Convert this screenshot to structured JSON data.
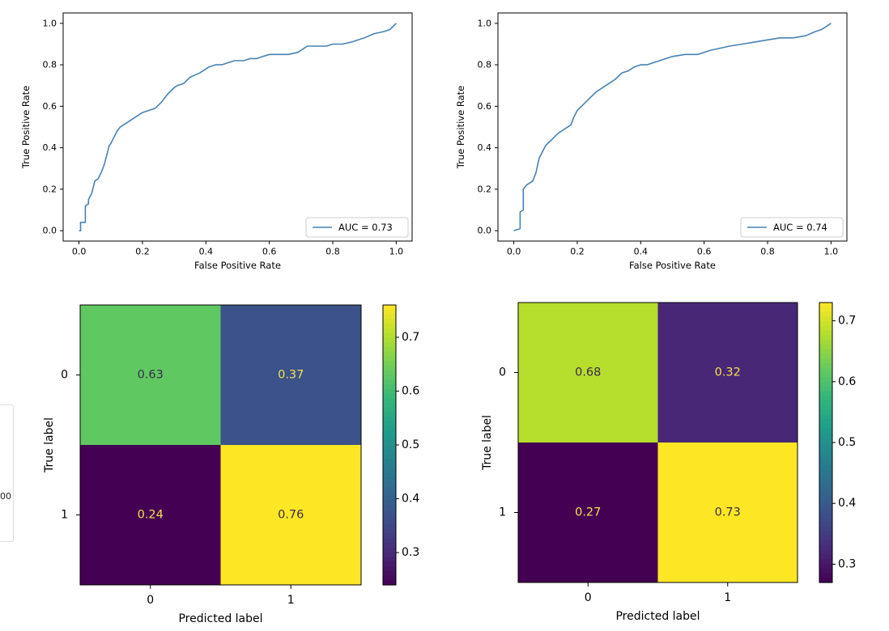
{
  "side_panel": {
    "visible_text": "00"
  },
  "chart_data": [
    {
      "type": "line",
      "xlabel": "False Positive Rate",
      "ylabel": "True Positive Rate",
      "xlim": [
        0,
        1
      ],
      "ylim": [
        0,
        1
      ],
      "xticks": [
        "0.0",
        "0.2",
        "0.4",
        "0.6",
        "0.8",
        "1.0"
      ],
      "yticks": [
        "0.0",
        "0.2",
        "0.4",
        "0.6",
        "0.8",
        "1.0"
      ],
      "legend": {
        "label": "AUC = 0.73",
        "location": "lower-right"
      },
      "color": "#4682b4",
      "series": [
        {
          "name": "AUC = 0.73",
          "x": [
            0.0,
            0.005,
            0.005,
            0.02,
            0.02,
            0.03,
            0.03,
            0.04,
            0.045,
            0.05,
            0.06,
            0.07,
            0.08,
            0.09,
            0.095,
            0.1,
            0.11,
            0.12,
            0.13,
            0.14,
            0.15,
            0.16,
            0.18,
            0.2,
            0.22,
            0.24,
            0.26,
            0.27,
            0.28,
            0.3,
            0.31,
            0.33,
            0.35,
            0.38,
            0.4,
            0.41,
            0.43,
            0.45,
            0.47,
            0.49,
            0.52,
            0.54,
            0.56,
            0.58,
            0.6,
            0.63,
            0.66,
            0.69,
            0.7,
            0.71,
            0.72,
            0.75,
            0.78,
            0.8,
            0.83,
            0.86,
            0.88,
            0.9,
            0.93,
            0.96,
            0.98,
            1.0
          ],
          "y": [
            0.0,
            0.0,
            0.04,
            0.04,
            0.12,
            0.13,
            0.15,
            0.18,
            0.21,
            0.24,
            0.25,
            0.28,
            0.32,
            0.38,
            0.41,
            0.42,
            0.45,
            0.48,
            0.5,
            0.51,
            0.52,
            0.53,
            0.55,
            0.57,
            0.58,
            0.59,
            0.62,
            0.64,
            0.66,
            0.69,
            0.7,
            0.71,
            0.74,
            0.76,
            0.78,
            0.79,
            0.8,
            0.8,
            0.81,
            0.82,
            0.82,
            0.83,
            0.83,
            0.84,
            0.85,
            0.85,
            0.85,
            0.86,
            0.87,
            0.88,
            0.89,
            0.89,
            0.89,
            0.9,
            0.9,
            0.91,
            0.92,
            0.93,
            0.95,
            0.96,
            0.97,
            1.0
          ]
        }
      ]
    },
    {
      "type": "line",
      "xlabel": "False Positive Rate",
      "ylabel": "True Positive Rate",
      "xlim": [
        0,
        1
      ],
      "ylim": [
        0,
        1
      ],
      "xticks": [
        "0.0",
        "0.2",
        "0.4",
        "0.6",
        "0.8",
        "1.0"
      ],
      "yticks": [
        "0.0",
        "0.2",
        "0.4",
        "0.6",
        "0.8",
        "1.0"
      ],
      "legend": {
        "label": "AUC = 0.74",
        "location": "lower-right"
      },
      "color": "#4682b4",
      "series": [
        {
          "name": "AUC = 0.74",
          "x": [
            0.0,
            0.02,
            0.02,
            0.03,
            0.03,
            0.04,
            0.05,
            0.06,
            0.07,
            0.08,
            0.09,
            0.1,
            0.12,
            0.14,
            0.16,
            0.18,
            0.19,
            0.2,
            0.22,
            0.24,
            0.26,
            0.28,
            0.3,
            0.32,
            0.34,
            0.36,
            0.38,
            0.4,
            0.42,
            0.44,
            0.46,
            0.5,
            0.54,
            0.58,
            0.6,
            0.62,
            0.65,
            0.68,
            0.72,
            0.76,
            0.8,
            0.84,
            0.88,
            0.92,
            0.95,
            0.97,
            0.99,
            1.0
          ],
          "y": [
            0.0,
            0.01,
            0.09,
            0.1,
            0.2,
            0.22,
            0.23,
            0.24,
            0.28,
            0.35,
            0.38,
            0.41,
            0.44,
            0.47,
            0.49,
            0.51,
            0.55,
            0.58,
            0.61,
            0.64,
            0.67,
            0.69,
            0.71,
            0.73,
            0.76,
            0.77,
            0.79,
            0.8,
            0.8,
            0.81,
            0.82,
            0.84,
            0.85,
            0.85,
            0.86,
            0.87,
            0.88,
            0.89,
            0.9,
            0.91,
            0.92,
            0.93,
            0.93,
            0.94,
            0.96,
            0.97,
            0.99,
            1.0
          ]
        }
      ]
    },
    {
      "type": "heatmap",
      "xlabel": "Predicted label",
      "ylabel": "True label",
      "xticks": [
        "0",
        "1"
      ],
      "yticks": [
        "0",
        "1"
      ],
      "values": [
        [
          0.63,
          0.37
        ],
        [
          0.24,
          0.76
        ]
      ],
      "cell_labels": [
        [
          "0.63",
          "0.37"
        ],
        [
          "0.24",
          "0.76"
        ]
      ],
      "colorbar": {
        "min": 0.24,
        "max": 0.76,
        "ticks": [
          "0.3",
          "0.4",
          "0.5",
          "0.6",
          "0.7"
        ]
      },
      "colormap": "viridis"
    },
    {
      "type": "heatmap",
      "xlabel": "Predicted label",
      "ylabel": "True label",
      "xticks": [
        "0",
        "1"
      ],
      "yticks": [
        "0",
        "1"
      ],
      "values": [
        [
          0.68,
          0.32
        ],
        [
          0.27,
          0.73
        ]
      ],
      "cell_labels": [
        [
          "0.68",
          "0.32"
        ],
        [
          "0.27",
          "0.73"
        ]
      ],
      "colorbar": {
        "min": 0.27,
        "max": 0.73,
        "ticks": [
          "0.3",
          "0.4",
          "0.5",
          "0.6",
          "0.7"
        ]
      },
      "colormap": "viridis"
    }
  ]
}
